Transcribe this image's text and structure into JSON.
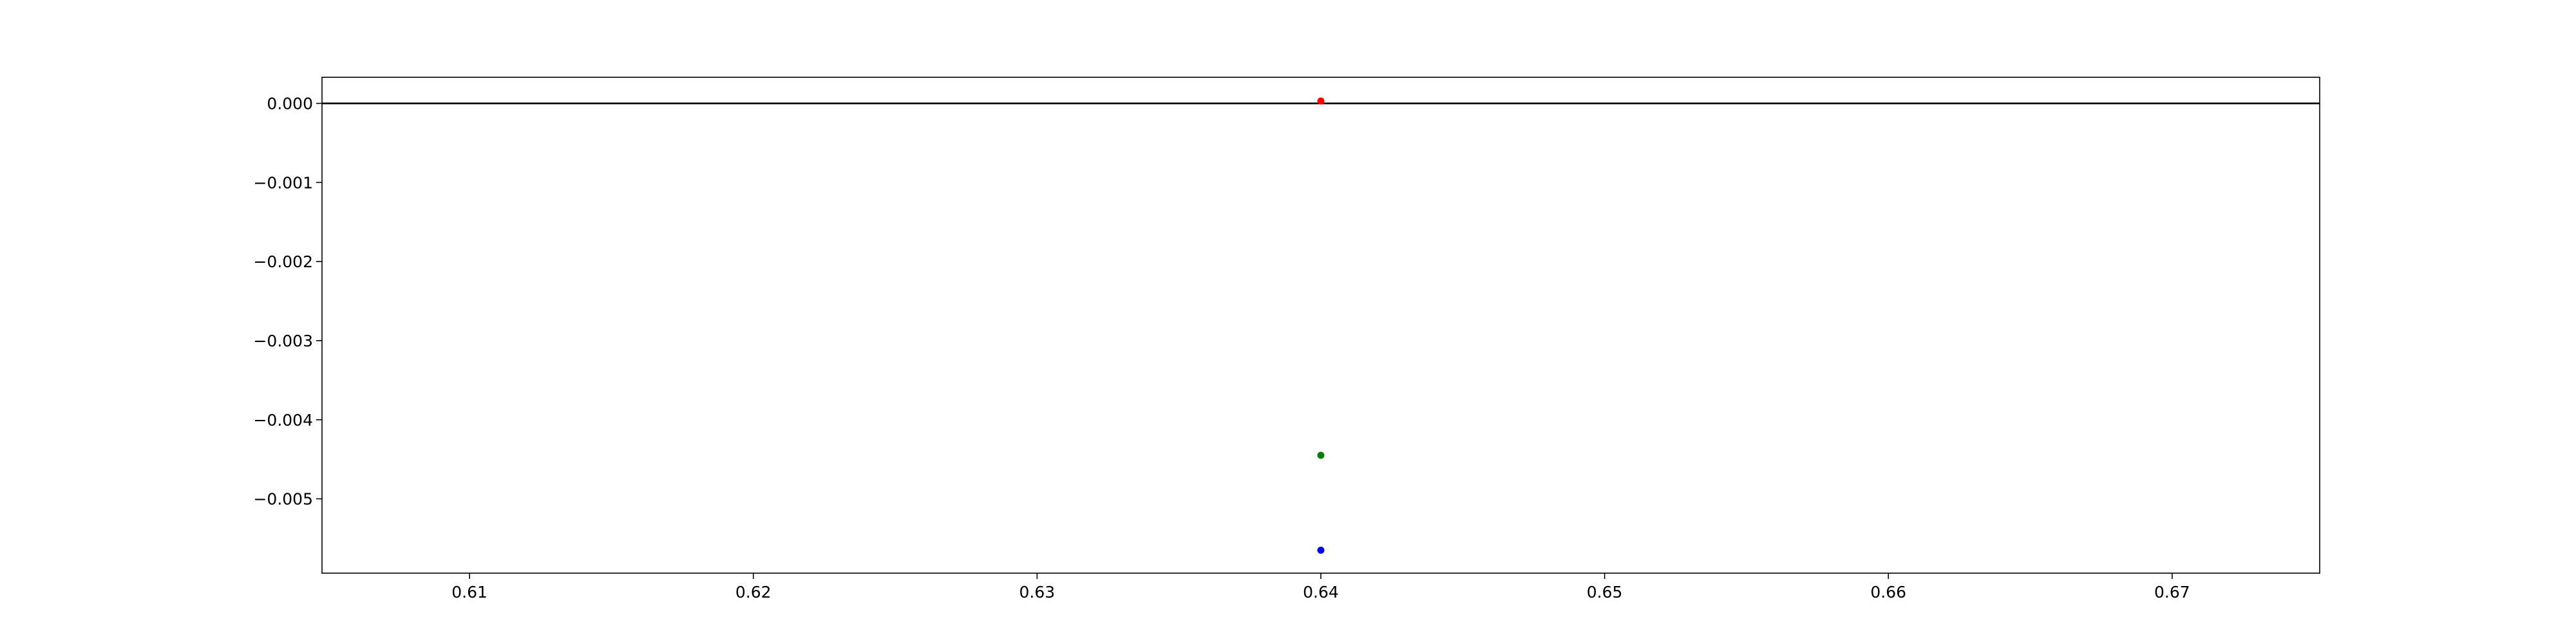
{
  "chart_data": {
    "type": "scatter",
    "title": "",
    "xlabel": "",
    "ylabel": "",
    "xlim": [
      0.6048,
      0.6752
    ],
    "ylim": [
      -0.00594,
      0.00033
    ],
    "x_ticks": [
      0.61,
      0.62,
      0.63,
      0.64,
      0.65,
      0.66,
      0.67
    ],
    "x_tick_labels": [
      "0.61",
      "0.62",
      "0.63",
      "0.64",
      "0.65",
      "0.66",
      "0.67"
    ],
    "y_ticks": [
      0.0,
      -0.001,
      -0.002,
      -0.003,
      -0.004,
      -0.005
    ],
    "y_tick_labels": [
      "0.000",
      "−0.001",
      "−0.002",
      "−0.003",
      "−0.004",
      "−0.005"
    ],
    "reference_line": {
      "y": 0.0,
      "color": "#000000"
    },
    "grid": false,
    "legend": "none",
    "points": [
      {
        "x": 0.64,
        "y": 3e-05,
        "color": "#ff0000"
      },
      {
        "x": 0.64,
        "y": -0.00445,
        "color": "#008000"
      },
      {
        "x": 0.64,
        "y": -0.00565,
        "color": "#0000ff"
      }
    ]
  }
}
